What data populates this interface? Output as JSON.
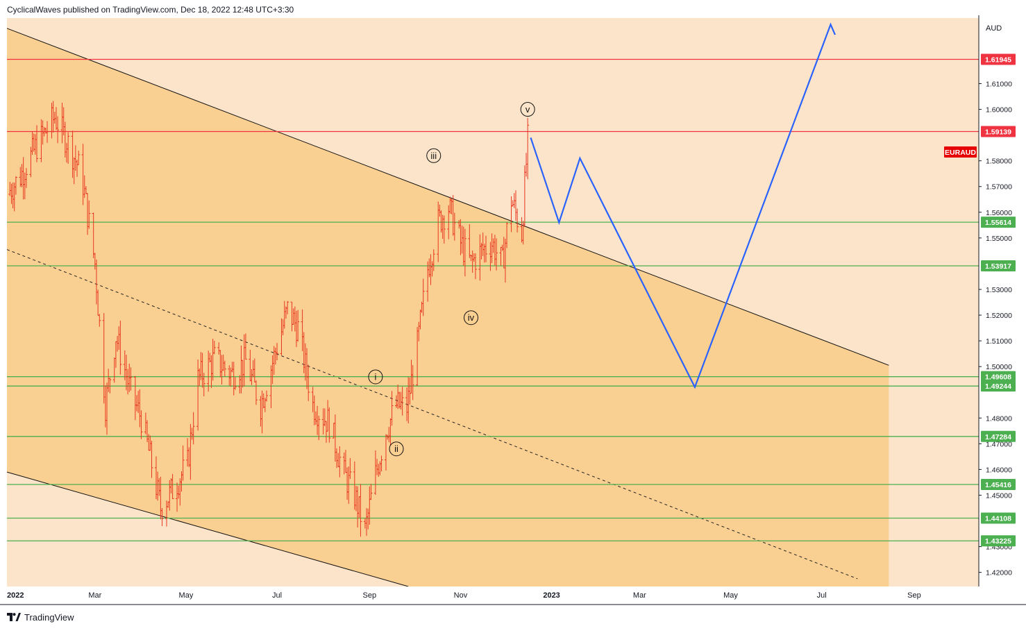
{
  "header": {
    "title": "CyclicalWaves published on TradingView.com, Dec 18, 2022 12:48 UTC+3:30"
  },
  "footer": {
    "brand": "TradingView"
  },
  "colors": {
    "channel_fill": "#facf92",
    "background_zone": "#fbe4c9",
    "resistance_line": "#ef3340",
    "support_line": "#4caf50",
    "projection_line": "#2962ff",
    "candle": "#e8361e",
    "symbol_badge": "#e60000"
  },
  "chart_data": {
    "type": "ohlc",
    "symbol": "EURAUD",
    "currency": "AUD",
    "x_tick_labels": [
      "2022",
      "Mar",
      "May",
      "Jul",
      "Sep",
      "Nov",
      "2023",
      "Mar",
      "May",
      "Jul",
      "Sep"
    ],
    "y_tick_labels": [
      "1.61000",
      "1.60000",
      "1.58000",
      "1.57000",
      "1.56000",
      "1.55000",
      "1.53000",
      "1.52000",
      "1.51000",
      "1.50000",
      "1.48000",
      "1.47000",
      "1.46000",
      "1.45000",
      "1.43000",
      "1.42000"
    ],
    "y_tick_values": [
      1.61,
      1.6,
      1.58,
      1.57,
      1.56,
      1.55,
      1.53,
      1.52,
      1.51,
      1.5,
      1.48,
      1.47,
      1.46,
      1.45,
      1.43,
      1.42
    ],
    "ylim": [
      1.4145,
      1.6355
    ],
    "price_levels": [
      {
        "label": "1.61945",
        "value": 1.61945,
        "kind": "resistance"
      },
      {
        "label": "1.59139",
        "value": 1.59139,
        "kind": "resistance"
      },
      {
        "label": "1.55614",
        "value": 1.55614,
        "kind": "support"
      },
      {
        "label": "1.53917",
        "value": 1.53917,
        "kind": "support"
      },
      {
        "label": "1.49608",
        "value": 1.49608,
        "kind": "support"
      },
      {
        "label": "1.49244",
        "value": 1.49244,
        "kind": "support"
      },
      {
        "label": "1.47284",
        "value": 1.47284,
        "kind": "support"
      },
      {
        "label": "1.45416",
        "value": 1.45416,
        "kind": "support"
      },
      {
        "label": "1.44108",
        "value": 1.44108,
        "kind": "support"
      },
      {
        "label": "1.43225",
        "value": 1.43225,
        "kind": "support"
      }
    ],
    "wave_labels": [
      {
        "text": "i",
        "date": "2022-09-05",
        "price": 1.496
      },
      {
        "text": "ii",
        "date": "2022-09-19",
        "price": 1.468
      },
      {
        "text": "iii",
        "date": "2022-10-14",
        "price": 1.582
      },
      {
        "text": "iv",
        "date": "2022-11-08",
        "price": 1.519
      },
      {
        "text": "v",
        "date": "2022-12-16",
        "price": 1.6
      }
    ],
    "price_path": [
      {
        "date": "2022-01-01",
        "price": 1.567
      },
      {
        "date": "2022-01-10",
        "price": 1.574
      },
      {
        "date": "2022-01-20",
        "price": 1.585
      },
      {
        "date": "2022-02-02",
        "price": 1.597
      },
      {
        "date": "2022-02-10",
        "price": 1.588
      },
      {
        "date": "2022-02-20",
        "price": 1.575
      },
      {
        "date": "2022-03-01",
        "price": 1.54
      },
      {
        "date": "2022-03-08",
        "price": 1.485
      },
      {
        "date": "2022-03-15",
        "price": 1.512
      },
      {
        "date": "2022-03-25",
        "price": 1.49
      },
      {
        "date": "2022-04-01",
        "price": 1.48
      },
      {
        "date": "2022-04-08",
        "price": 1.462
      },
      {
        "date": "2022-04-14",
        "price": 1.445
      },
      {
        "date": "2022-04-22",
        "price": 1.452
      },
      {
        "date": "2022-05-02",
        "price": 1.462
      },
      {
        "date": "2022-05-09",
        "price": 1.495
      },
      {
        "date": "2022-05-20",
        "price": 1.503
      },
      {
        "date": "2022-06-01",
        "price": 1.497
      },
      {
        "date": "2022-06-10",
        "price": 1.502
      },
      {
        "date": "2022-06-20",
        "price": 1.485
      },
      {
        "date": "2022-07-01",
        "price": 1.508
      },
      {
        "date": "2022-07-08",
        "price": 1.522
      },
      {
        "date": "2022-07-15",
        "price": 1.515
      },
      {
        "date": "2022-07-25",
        "price": 1.485
      },
      {
        "date": "2022-08-05",
        "price": 1.478
      },
      {
        "date": "2022-08-15",
        "price": 1.458
      },
      {
        "date": "2022-08-22",
        "price": 1.45
      },
      {
        "date": "2022-08-29",
        "price": 1.436
      },
      {
        "date": "2022-09-05",
        "price": 1.458
      },
      {
        "date": "2022-09-12",
        "price": 1.475
      },
      {
        "date": "2022-09-19",
        "price": 1.485
      },
      {
        "date": "2022-09-26",
        "price": 1.484
      },
      {
        "date": "2022-10-03",
        "price": 1.508
      },
      {
        "date": "2022-10-10",
        "price": 1.538
      },
      {
        "date": "2022-10-17",
        "price": 1.556
      },
      {
        "date": "2022-10-24",
        "price": 1.562
      },
      {
        "date": "2022-11-01",
        "price": 1.548
      },
      {
        "date": "2022-11-08",
        "price": 1.54
      },
      {
        "date": "2022-11-15",
        "price": 1.545
      },
      {
        "date": "2022-11-22",
        "price": 1.548
      },
      {
        "date": "2022-11-29",
        "price": 1.54
      },
      {
        "date": "2022-12-05",
        "price": 1.565
      },
      {
        "date": "2022-12-12",
        "price": 1.552
      },
      {
        "date": "2022-12-16",
        "price": 1.588
      }
    ],
    "projection": [
      {
        "date": "2022-12-18",
        "price": 1.589
      },
      {
        "date": "2023-01-06",
        "price": 1.556
      },
      {
        "date": "2023-01-20",
        "price": 1.581
      },
      {
        "date": "2023-04-07",
        "price": 1.492
      },
      {
        "date": "2023-07-07",
        "price": 1.633
      },
      {
        "date": "2023-07-10",
        "price": 1.629
      }
    ],
    "upper_channel": [
      {
        "date": "2022-01-01",
        "price": 1.6315
      },
      {
        "date": "2023-08-15",
        "price": 1.5005
      }
    ],
    "middle_channel": [
      {
        "date": "2022-01-01",
        "price": 1.5455
      },
      {
        "date": "2023-07-25",
        "price": 1.4175
      }
    ],
    "lower_channel": [
      {
        "date": "2022-01-01",
        "price": 1.459
      },
      {
        "date": "2022-09-30",
        "price": 1.414
      }
    ],
    "channel_end": "2023-08-15"
  }
}
